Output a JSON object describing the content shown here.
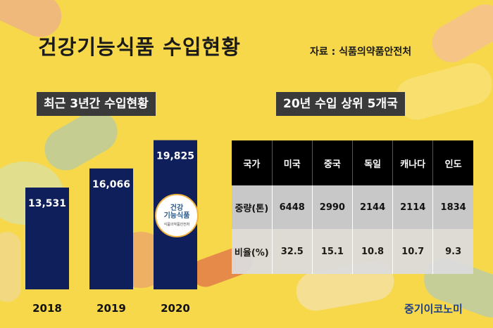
{
  "title": "건강기능식품 수입현황",
  "source": "자료 : 식품의약품안전처",
  "left_subtitle": "최근 3년간 수입현황",
  "right_subtitle": "20년 수입 상위 5개국",
  "badge": {
    "line1": "건강",
    "line2": "기능식품",
    "small": "식품의약품안전처"
  },
  "brand": "중기이코노미",
  "colors": {
    "bar": "#0e1f5b",
    "background": "#f6d84a",
    "header": "#000000"
  },
  "chart_data": {
    "type": "bar",
    "categories": [
      "2018",
      "2019",
      "2020"
    ],
    "values": [
      13531,
      16066,
      19825
    ],
    "value_labels": [
      "13,531",
      "16,066",
      "19,825"
    ],
    "title": "최근 3년간 수입현황",
    "xlabel": "",
    "ylabel": "",
    "ylim": [
      0,
      21000
    ],
    "grid": false
  },
  "table": {
    "headers": [
      "국가",
      "미국",
      "중국",
      "독일",
      "캐나다",
      "인도"
    ],
    "rows": [
      [
        "중량(톤)",
        "6448",
        "2990",
        "2144",
        "2114",
        "1834"
      ],
      [
        "비율(%)",
        "32.5",
        "15.1",
        "10.8",
        "10.7",
        "9.3"
      ]
    ]
  }
}
